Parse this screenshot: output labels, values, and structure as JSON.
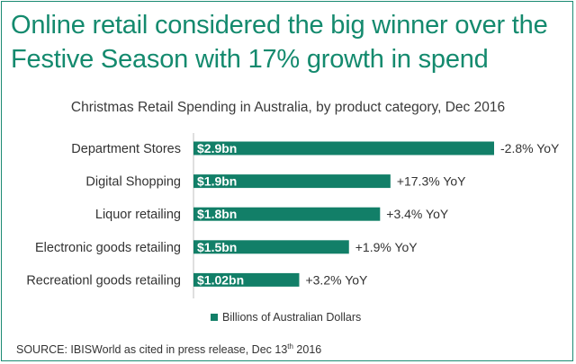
{
  "headline": "Online retail considered the big winner over the Festive Season with 17% growth in spend",
  "subtitle": "Christmas Retail Spending in Australia, by product category, Dec 2016",
  "colors": {
    "bar": "#127f68",
    "headline": "#148a6e",
    "frame": "#1a8a72"
  },
  "chart_data": {
    "type": "bar",
    "orientation": "horizontal",
    "categories": [
      "Department Stores",
      "Digital Shopping",
      "Liquor retailing",
      "Electronic goods retailing",
      "Recreationl goods retailing"
    ],
    "values": [
      2.9,
      1.9,
      1.8,
      1.5,
      1.02
    ],
    "value_labels": [
      "$2.9bn",
      "$1.9bn",
      "$1.8bn",
      "$1.5bn",
      "$1.02bn"
    ],
    "annotations": [
      "-2.8% YoY",
      "+17.3% YoY",
      "+3.4% YoY",
      "+1.9% YoY",
      "+3.2% YoY"
    ],
    "series": [
      {
        "name": "Billions of Australian Dollars",
        "values": [
          2.9,
          1.9,
          1.8,
          1.5,
          1.02
        ]
      }
    ],
    "xlim": [
      0,
      2.9
    ],
    "grid": false,
    "legend_position": "bottom"
  },
  "source": {
    "prefix": "SOURCE: IBISWorld as cited in press release, Dec 13",
    "sup": "th",
    "suffix": " 2016"
  }
}
